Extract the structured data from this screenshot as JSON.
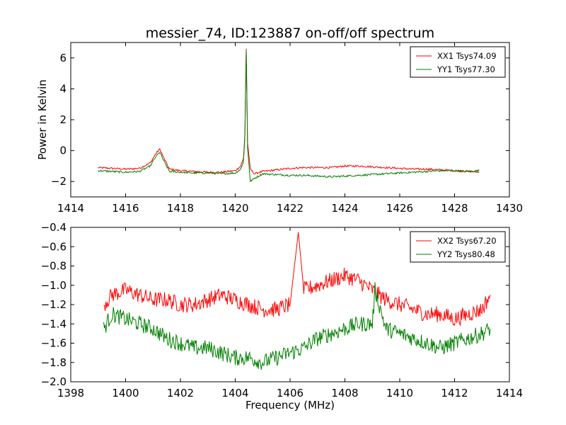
{
  "figure": {
    "title": "messier_74, ID:123887 on-off/off spectrum",
    "top_ylabel": "Power in Kelvin",
    "bottom_xlabel": "Frequency (MHz)"
  },
  "chart_data": [
    {
      "type": "line",
      "title": "messier_74, ID:123887 on-off/off spectrum",
      "xlabel": "",
      "ylabel": "Power in Kelvin",
      "xlim": [
        1414,
        1430
      ],
      "ylim": [
        -3,
        7
      ],
      "xticks": [
        "1414",
        "1416",
        "1418",
        "1420",
        "1422",
        "1424",
        "1426",
        "1428",
        "1430"
      ],
      "yticks": [
        "−2",
        "0",
        "2",
        "4",
        "6"
      ],
      "legend_position": "top-right",
      "grid": false,
      "series": [
        {
          "name": "XX1 Tsys74.09",
          "color": "#ff0000",
          "x": [
            1415.0,
            1415.5,
            1416.0,
            1416.5,
            1416.9,
            1417.1,
            1417.25,
            1417.4,
            1417.6,
            1418.0,
            1418.5,
            1419.0,
            1419.5,
            1420.0,
            1420.2,
            1420.3,
            1420.35,
            1420.4,
            1420.45,
            1420.55,
            1420.7,
            1421.0,
            1421.5,
            1422.0,
            1422.5,
            1423.0,
            1423.5,
            1424.0,
            1424.5,
            1425.0,
            1425.5,
            1426.0,
            1426.5,
            1427.0,
            1427.5,
            1428.0,
            1428.5,
            1428.9
          ],
          "y": [
            -1.1,
            -1.15,
            -1.2,
            -1.15,
            -0.8,
            -0.2,
            0.1,
            -0.5,
            -1.2,
            -1.3,
            -1.35,
            -1.4,
            -1.4,
            -1.3,
            -1.0,
            -0.5,
            1.0,
            6.6,
            0.5,
            -1.2,
            -1.5,
            -1.35,
            -1.25,
            -1.15,
            -1.1,
            -1.1,
            -1.1,
            -1.0,
            -1.0,
            -1.05,
            -1.1,
            -1.15,
            -1.2,
            -1.2,
            -1.25,
            -1.3,
            -1.35,
            -1.4
          ]
        },
        {
          "name": "YY1 Tsys77.30",
          "color": "#008000",
          "x": [
            1415.0,
            1415.5,
            1416.0,
            1416.5,
            1416.9,
            1417.1,
            1417.25,
            1417.4,
            1417.6,
            1418.0,
            1418.5,
            1419.0,
            1419.5,
            1420.0,
            1420.2,
            1420.3,
            1420.35,
            1420.4,
            1420.45,
            1420.55,
            1420.7,
            1421.0,
            1421.5,
            1422.0,
            1422.5,
            1423.0,
            1423.5,
            1424.0,
            1424.5,
            1425.0,
            1425.5,
            1426.0,
            1426.5,
            1427.0,
            1427.5,
            1428.0,
            1428.5,
            1428.9
          ],
          "y": [
            -1.3,
            -1.35,
            -1.4,
            -1.35,
            -1.0,
            -0.4,
            -0.1,
            -0.7,
            -1.35,
            -1.4,
            -1.45,
            -1.45,
            -1.5,
            -1.45,
            -1.2,
            -0.7,
            0.8,
            6.5,
            0.2,
            -2.0,
            -1.8,
            -1.5,
            -1.55,
            -1.6,
            -1.6,
            -1.65,
            -1.7,
            -1.65,
            -1.6,
            -1.55,
            -1.5,
            -1.45,
            -1.4,
            -1.35,
            -1.3,
            -1.3,
            -1.35,
            -1.3
          ]
        }
      ]
    },
    {
      "type": "line",
      "title": "",
      "xlabel": "Frequency (MHz)",
      "ylabel": "",
      "xlim": [
        1398,
        1414
      ],
      "ylim": [
        -2.0,
        -0.4
      ],
      "xticks": [
        "1398",
        "1400",
        "1402",
        "1404",
        "1406",
        "1408",
        "1410",
        "1412",
        "1414"
      ],
      "yticks": [
        "−2.0",
        "−1.8",
        "−1.6",
        "−1.4",
        "−1.2",
        "−1.0",
        "−0.8",
        "−0.6",
        "−0.4"
      ],
      "legend_position": "top-right",
      "grid": false,
      "series": [
        {
          "name": "XX2 Tsys67.20",
          "color": "#ff0000",
          "x": [
            1399.2,
            1399.5,
            1400.0,
            1400.5,
            1401.0,
            1401.5,
            1402.0,
            1402.5,
            1403.0,
            1403.5,
            1404.0,
            1404.5,
            1405.0,
            1405.5,
            1406.0,
            1406.3,
            1406.5,
            1407.0,
            1407.5,
            1408.0,
            1408.5,
            1409.0,
            1409.5,
            1410.0,
            1410.5,
            1411.0,
            1411.5,
            1412.0,
            1412.5,
            1413.0,
            1413.3
          ],
          "y": [
            -1.2,
            -1.1,
            -1.05,
            -1.1,
            -1.15,
            -1.15,
            -1.2,
            -1.2,
            -1.15,
            -1.1,
            -1.15,
            -1.2,
            -1.25,
            -1.25,
            -1.2,
            -0.45,
            -1.05,
            -1.0,
            -0.95,
            -0.9,
            -0.95,
            -1.05,
            -1.15,
            -1.2,
            -1.25,
            -1.3,
            -1.3,
            -1.35,
            -1.3,
            -1.25,
            -1.1
          ]
        },
        {
          "name": "YY2 Tsys80.48",
          "color": "#008000",
          "x": [
            1399.2,
            1399.5,
            1400.0,
            1400.5,
            1401.0,
            1401.5,
            1402.0,
            1402.5,
            1403.0,
            1403.5,
            1404.0,
            1404.5,
            1405.0,
            1405.5,
            1406.0,
            1406.5,
            1407.0,
            1407.5,
            1408.0,
            1408.5,
            1409.0,
            1409.1,
            1409.5,
            1410.0,
            1410.5,
            1411.0,
            1411.5,
            1412.0,
            1412.5,
            1413.0,
            1413.3
          ],
          "y": [
            -1.45,
            -1.3,
            -1.35,
            -1.4,
            -1.45,
            -1.55,
            -1.6,
            -1.65,
            -1.65,
            -1.7,
            -1.75,
            -1.75,
            -1.8,
            -1.75,
            -1.7,
            -1.65,
            -1.55,
            -1.5,
            -1.45,
            -1.4,
            -1.4,
            -1.05,
            -1.45,
            -1.5,
            -1.55,
            -1.6,
            -1.65,
            -1.6,
            -1.55,
            -1.5,
            -1.45
          ]
        }
      ]
    }
  ]
}
